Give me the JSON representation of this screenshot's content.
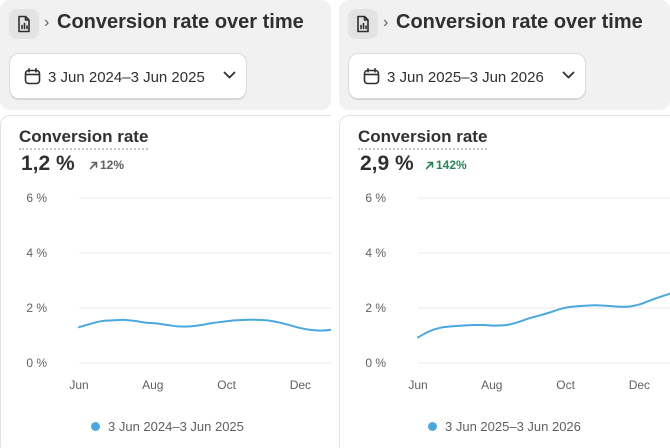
{
  "colors": {
    "series": "#4aa8df",
    "trend_neutral": "#616161",
    "trend_positive": "#29845a"
  },
  "panels": [
    {
      "header": {
        "icon": "report-icon",
        "breadcrumb_separator": "›",
        "title": "Conversion rate over time"
      },
      "date_range": {
        "icon": "calendar-icon",
        "label": "3 Jun 2024–3 Jun 2025",
        "chevron_icon": "chevron-down-icon"
      },
      "metric": {
        "title": "Conversion rate",
        "value": "1,2 %",
        "trend": "12%",
        "trend_direction": "up",
        "trend_style": "neutral"
      },
      "legend": {
        "label": "3 Jun 2024–3 Jun 2025"
      }
    },
    {
      "header": {
        "icon": "report-icon",
        "breadcrumb_separator": "›",
        "title": "Conversion rate over time"
      },
      "date_range": {
        "icon": "calendar-icon",
        "label": "3 Jun 2025–3 Jun 2026",
        "chevron_icon": "chevron-down-icon"
      },
      "metric": {
        "title": "Conversion rate",
        "value": "2,9 %",
        "trend": "142%",
        "trend_direction": "up",
        "trend_style": "positive"
      },
      "legend": {
        "label": "3 Jun 2025–3 Jun 2026"
      }
    }
  ],
  "chart_data": [
    {
      "type": "line",
      "y_ticks": [
        "6 %",
        "4 %",
        "2 %",
        "0 %"
      ],
      "y_tick_values": [
        6,
        4,
        2,
        0
      ],
      "x_ticks": [
        "Jun",
        "Aug",
        "Oct",
        "Dec"
      ],
      "ylim": [
        0,
        6
      ],
      "x_unit": "months since start of range",
      "grid": true,
      "legend_position": "bottom",
      "series": [
        {
          "name": "3 Jun 2024–3 Jun 2025",
          "x": [
            0,
            0.3,
            0.6,
            0.9,
            1.2,
            1.5,
            1.8,
            2.1,
            2.4,
            2.7,
            3.0,
            3.3,
            3.6,
            3.9,
            4.2,
            4.5,
            4.8,
            5.1,
            5.4,
            5.7,
            6.0,
            6.3,
            6.6,
            6.9,
            7.2,
            7.5
          ],
          "y": [
            1.3,
            1.42,
            1.52,
            1.55,
            1.57,
            1.53,
            1.47,
            1.44,
            1.38,
            1.33,
            1.33,
            1.38,
            1.45,
            1.5,
            1.55,
            1.57,
            1.57,
            1.55,
            1.48,
            1.38,
            1.27,
            1.2,
            1.18,
            1.22,
            1.3,
            1.4
          ]
        }
      ]
    },
    {
      "type": "line",
      "y_ticks": [
        "6 %",
        "4 %",
        "2 %",
        "0 %"
      ],
      "y_tick_values": [
        6,
        4,
        2,
        0
      ],
      "x_ticks": [
        "Jun",
        "Aug",
        "Oct",
        "Dec"
      ],
      "ylim": [
        0,
        6
      ],
      "x_unit": "months since start of range",
      "grid": true,
      "legend_position": "bottom",
      "series": [
        {
          "name": "3 Jun 2025–3 Jun 2026",
          "x": [
            0,
            0.3,
            0.6,
            0.9,
            1.2,
            1.5,
            1.8,
            2.1,
            2.4,
            2.7,
            3.0,
            3.3,
            3.6,
            3.9,
            4.2,
            4.5,
            4.8,
            5.1,
            5.4,
            5.7,
            6.0,
            6.3,
            6.6,
            6.9,
            7.2,
            7.5
          ],
          "y": [
            0.93,
            1.15,
            1.28,
            1.33,
            1.36,
            1.38,
            1.38,
            1.36,
            1.38,
            1.48,
            1.62,
            1.73,
            1.85,
            1.98,
            2.05,
            2.08,
            2.1,
            2.08,
            2.05,
            2.05,
            2.13,
            2.28,
            2.42,
            2.55,
            2.68,
            2.8
          ]
        }
      ]
    }
  ]
}
